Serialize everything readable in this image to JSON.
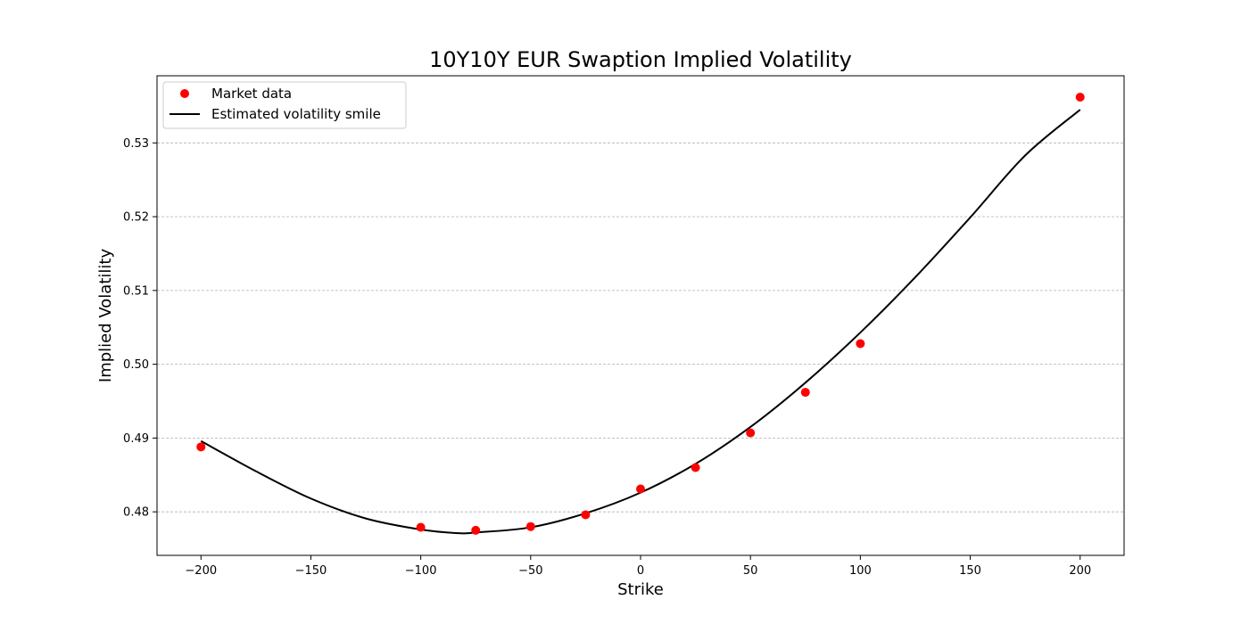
{
  "chart_data": {
    "type": "scatter",
    "title": "10Y10Y EUR Swaption Implied Volatility",
    "xlabel": "Strike",
    "ylabel": "Implied Volatility",
    "xlim": [
      -220,
      220
    ],
    "ylim": [
      0.4741,
      0.5391
    ],
    "x_ticks": [
      -200,
      -150,
      -100,
      -50,
      0,
      50,
      100,
      150,
      200
    ],
    "x_tick_labels": [
      "−200",
      "−150",
      "−100",
      "−50",
      "0",
      "50",
      "100",
      "150",
      "200"
    ],
    "y_ticks": [
      0.48,
      0.49,
      0.5,
      0.51,
      0.52,
      0.53
    ],
    "y_tick_labels": [
      "0.48",
      "0.49",
      "0.50",
      "0.51",
      "0.52",
      "0.53"
    ],
    "grid": "horizontal dashed",
    "legend_position": "top-left",
    "series": [
      {
        "name": "Market data",
        "kind": "scatter",
        "color": "#ff0000",
        "x": [
          -200,
          -100,
          -75,
          -50,
          -25,
          0,
          25,
          50,
          75,
          100,
          200
        ],
        "y": [
          0.4888,
          0.4779,
          0.4775,
          0.478,
          0.4796,
          0.4831,
          0.486,
          0.4907,
          0.4962,
          0.5028,
          0.5362
        ]
      },
      {
        "name": "Estimated volatility smile",
        "kind": "line",
        "color": "#000000",
        "x": [
          -200,
          -175,
          -150,
          -125,
          -100,
          -83,
          -75,
          -50,
          -25,
          0,
          25,
          50,
          75,
          100,
          125,
          150,
          175,
          200
        ],
        "y": [
          0.4896,
          0.4855,
          0.4818,
          0.4791,
          0.4776,
          0.4771,
          0.4772,
          0.4779,
          0.4798,
          0.4826,
          0.4865,
          0.4915,
          0.4975,
          0.5043,
          0.5118,
          0.5199,
          0.5283,
          0.5345
        ]
      }
    ]
  }
}
